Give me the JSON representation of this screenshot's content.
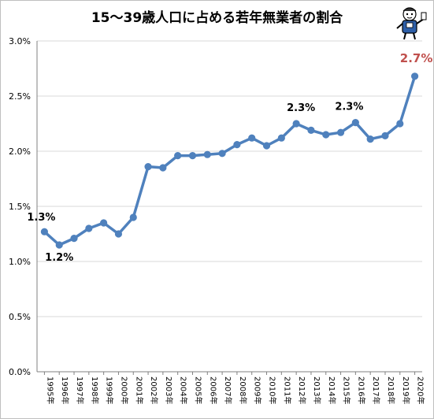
{
  "chart_data": {
    "type": "line",
    "title": "15～39歳人口に占める若年無業者の割合",
    "xlabel": "",
    "ylabel": "",
    "ylim": [
      0,
      3.0
    ],
    "y_ticks": [
      "0.0%",
      "0.5%",
      "1.0%",
      "1.5%",
      "2.0%",
      "2.5%",
      "3.0%"
    ],
    "grid": true,
    "categories": [
      "1995年",
      "1996年",
      "1997年",
      "1998年",
      "1999年",
      "2000年",
      "2001年",
      "2002年",
      "2003年",
      "2004年",
      "2005年",
      "2006年",
      "2007年",
      "2008年",
      "2009年",
      "2010年",
      "2011年",
      "2012年",
      "2013年",
      "2014年",
      "2015年",
      "2016年",
      "2017年",
      "2018年",
      "2019年",
      "2020年"
    ],
    "series": [
      {
        "values": [
          1.27,
          1.15,
          1.21,
          1.3,
          1.35,
          1.25,
          1.4,
          1.86,
          1.85,
          1.96,
          1.96,
          1.97,
          1.98,
          2.06,
          2.12,
          2.05,
          2.12,
          2.25,
          2.19,
          2.15,
          2.17,
          2.26,
          2.11,
          2.14,
          2.25,
          2.68
        ],
        "color": "#4f81bd"
      }
    ],
    "data_labels": [
      {
        "index": 0,
        "text": "1.3%",
        "highlight": false
      },
      {
        "index": 1,
        "text": "1.2%",
        "highlight": false
      },
      {
        "index": 17,
        "text": "2.3%",
        "highlight": false
      },
      {
        "index": 21,
        "text": "2.3%",
        "highlight": false
      },
      {
        "index": 25,
        "text": "2.7%",
        "highlight": true
      }
    ],
    "highlight_color": "#c0504d",
    "grid_color": "#d9d9d9"
  },
  "mascot": {
    "icon": "mascot-character-icon"
  }
}
